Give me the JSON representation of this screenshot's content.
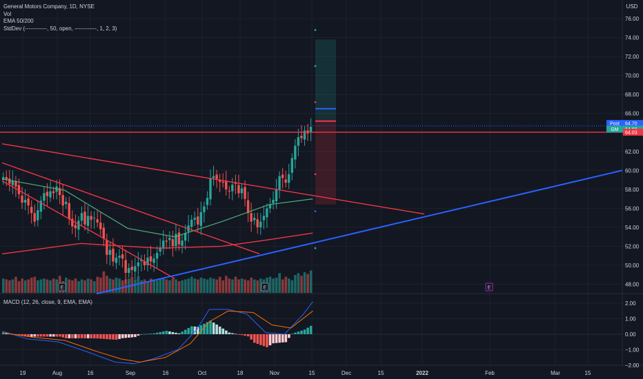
{
  "legend": {
    "title": "General Motors Company, 1D, NYSE",
    "vol": "Vol",
    "ema": "EMA 50/200",
    "stddev": "StdDev (------------, 50, open, ------------, 1, 2, 3)"
  },
  "macd_legend": "MACD (12, 26, close, 9, EMA, EMA)",
  "currency": "USD",
  "price_tags": [
    {
      "label": "Post",
      "value": "64.70",
      "color": "#2962ff"
    },
    {
      "label": "GM",
      "value": "64.60",
      "color": "#26a69a"
    },
    {
      "label": "",
      "value": "64.03",
      "color": "#f23645"
    }
  ],
  "earnings_marker": "E",
  "colors": {
    "up": "#26a69a",
    "down": "#ef5350",
    "ema50": "#4caf7d",
    "ema200": "#f23645",
    "trend_red": "#f23645",
    "trend_blue": "#2962ff",
    "macd": "#2962ff",
    "signal": "#ff6d00"
  },
  "chart_data": [
    {
      "type": "candlestick",
      "title": "General Motors Company, 1D, NYSE",
      "y_ticks": [
        "76.00",
        "74.00",
        "72.00",
        "70.00",
        "68.00",
        "66.00",
        "64.00",
        "62.00",
        "60.00",
        "58.00",
        "56.00",
        "54.00",
        "52.00",
        "50.00",
        "48.00"
      ],
      "ylim": [
        47.0,
        77.0
      ],
      "x_ticks": [
        "19",
        "Aug",
        "16",
        "Sep",
        "16",
        "Oct",
        "18",
        "Nov",
        "15",
        "Dec",
        "15",
        "2022",
        "Feb",
        "Mar",
        "15"
      ],
      "close_series": [
        59.3,
        59.0,
        58.6,
        58.9,
        58.3,
        57.5,
        56.6,
        56.9,
        56.3,
        55.5,
        54.6,
        55.8,
        56.8,
        57.6,
        57.3,
        57.8,
        57.6,
        58.3,
        57.4,
        56.3,
        56.7,
        54.9,
        54.1,
        53.9,
        54.7,
        55.5,
        54.3,
        55.2,
        54.8,
        55.0,
        54.5,
        53.8,
        52.8,
        51.1,
        51.6,
        50.4,
        50.8,
        51.0,
        50.7,
        49.2,
        49.7,
        49.5,
        49.9,
        50.3,
        50.6,
        50.0,
        50.8,
        50.4,
        50.7,
        51.3,
        51.9,
        52.6,
        52.5,
        52.9,
        52.0,
        53.3,
        52.2,
        52.6,
        53.4,
        54.2,
        54.8,
        55.0,
        54.3,
        55.6,
        56.2,
        57.1,
        59.2,
        59.4,
        59.1,
        58.8,
        58.7,
        58.0,
        57.8,
        58.5,
        58.6,
        57.6,
        58.1,
        57.0,
        55.5,
        54.6,
        55.0,
        54.0,
        54.6,
        55.2,
        56.0,
        56.4,
        56.9,
        58.0,
        59.4,
        59.2,
        58.7,
        59.6,
        61.3,
        62.6,
        63.5,
        63.4,
        64.2,
        63.9,
        64.6
      ],
      "ema50_points": [
        [
          0,
          59.1
        ],
        [
          20,
          57.9
        ],
        [
          40,
          53.9
        ],
        [
          55,
          53.0
        ],
        [
          70,
          54.6
        ],
        [
          85,
          56.4
        ],
        [
          99,
          57.0
        ]
      ],
      "ema200_points": [
        [
          0,
          51.2
        ],
        [
          25,
          52.3
        ],
        [
          50,
          51.8
        ],
        [
          70,
          52.0
        ],
        [
          85,
          52.7
        ],
        [
          99,
          53.4
        ]
      ],
      "volume_series": [
        1.6,
        1.5,
        1.4,
        1.5,
        1.8,
        1.3,
        1.6,
        1.4,
        1.5,
        1.7,
        1.8,
        1.4,
        1.5,
        1.6,
        1.5,
        1.4,
        1.6,
        1.5,
        1.9,
        1.3,
        1.7,
        1.5,
        1.4,
        1.6,
        1.3,
        1.5,
        1.4,
        1.6,
        1.5,
        1.3,
        1.8,
        1.7,
        2.4,
        1.9,
        1.6,
        1.5,
        1.7,
        1.6,
        1.4,
        1.5,
        1.6,
        1.8,
        1.5,
        1.9,
        1.4,
        1.5,
        1.3,
        1.6,
        1.5,
        1.4,
        1.6,
        1.7,
        1.5,
        1.4,
        1.6,
        1.5,
        1.3,
        1.4,
        1.5,
        1.6,
        1.8,
        1.6,
        1.5,
        1.7,
        1.6,
        1.5,
        1.7,
        1.6,
        1.5,
        1.8,
        1.4,
        1.9,
        1.6,
        1.5,
        1.8,
        1.5,
        1.6,
        1.5,
        1.4,
        1.7,
        1.5,
        1.4,
        1.6,
        1.5,
        1.7,
        1.8,
        1.6,
        1.7,
        2.2,
        1.5,
        1.8,
        1.6,
        1.4,
        2.0,
        2.2,
        1.9,
        2.3,
        2.1,
        2.5
      ],
      "trendlines": [
        {
          "color": "#f23645",
          "from": [
            0,
            62.8
          ],
          "to": [
            134,
            55.4
          ]
        },
        {
          "color": "#f23645",
          "from": [
            0,
            60.8
          ],
          "to": [
            82,
            51.2
          ]
        },
        {
          "color": "#f23645",
          "from": [
            0,
            58.9
          ],
          "to": [
            55,
            48.6
          ]
        },
        {
          "color": "#2962ff",
          "from": [
            30,
            47.0
          ],
          "to": [
            200,
            60.0
          ]
        },
        {
          "color": "#f23645",
          "from": [
            0,
            64.03
          ],
          "to": [
            200,
            64.03
          ]
        }
      ],
      "position_tool": {
        "entry": 65.2,
        "target": 73.8,
        "stop": 56.4,
        "target_line": 66.5
      },
      "stddev_points": [
        [
          99,
          74.8
        ],
        [
          99,
          71.0
        ],
        [
          99,
          67.2
        ],
        [
          99,
          59.6
        ],
        [
          99,
          55.7
        ],
        [
          99,
          51.8
        ]
      ]
    },
    {
      "type": "line",
      "title": "MACD (12, 26, close, 9, EMA, EMA)",
      "y_ticks": [
        "2.00",
        "1.00",
        "0.00",
        "−1.00",
        "−2.00"
      ],
      "ylim": [
        -2.4,
        2.4
      ],
      "macd_points": [
        [
          0,
          0.2
        ],
        [
          8,
          -0.3
        ],
        [
          18,
          -0.5
        ],
        [
          28,
          -1.2
        ],
        [
          36,
          -1.8
        ],
        [
          42,
          -1.9
        ],
        [
          48,
          -1.6
        ],
        [
          56,
          -1.0
        ],
        [
          62,
          0.3
        ],
        [
          66,
          1.6
        ],
        [
          72,
          1.6
        ],
        [
          78,
          1.3
        ],
        [
          84,
          0.1
        ],
        [
          90,
          0.0
        ],
        [
          96,
          1.3
        ],
        [
          99,
          2.1
        ]
      ],
      "signal_points": [
        [
          0,
          0.1
        ],
        [
          10,
          -0.2
        ],
        [
          20,
          -0.4
        ],
        [
          30,
          -1.1
        ],
        [
          38,
          -1.6
        ],
        [
          44,
          -1.8
        ],
        [
          52,
          -1.5
        ],
        [
          60,
          -0.6
        ],
        [
          66,
          0.8
        ],
        [
          72,
          1.5
        ],
        [
          80,
          1.4
        ],
        [
          86,
          0.6
        ],
        [
          92,
          0.4
        ],
        [
          99,
          1.5
        ]
      ]
    }
  ]
}
